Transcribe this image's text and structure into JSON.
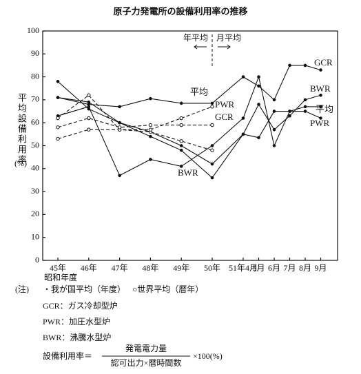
{
  "chart_data": {
    "type": "line",
    "title": "原子力発電所の設備利用率の推移",
    "y_label": "平均設備利用率",
    "y_unit": "(%)",
    "x_label": "昭和年度",
    "categories": [
      "45年",
      "46年",
      "47年",
      "48年",
      "49年",
      "50年",
      "51年4月",
      "5月",
      "6月",
      "7月",
      "8月",
      "9月"
    ],
    "ylim": [
      0,
      100
    ],
    "yticks": [
      0,
      10,
      20,
      30,
      40,
      50,
      60,
      70,
      80,
      90,
      100
    ],
    "annotations": [
      "年平均",
      "月平均"
    ],
    "series": [
      {
        "name": "GCR",
        "color": "#111",
        "style": "solid",
        "marker": "dot",
        "values": [
          71,
          68,
          67,
          70.5,
          68.5,
          68.5,
          80,
          76,
          70,
          85,
          85,
          83
        ]
      },
      {
        "name": "BWR",
        "color": "#111",
        "style": "solid",
        "marker": "dot",
        "values": [
          78,
          66,
          60,
          54,
          48,
          36,
          55,
          68,
          57,
          63,
          70,
          72
        ]
      },
      {
        "name": "平均",
        "color": "#111",
        "style": "solid",
        "marker": "dot",
        "values": [
          71,
          69,
          60,
          56,
          50,
          42,
          55,
          53.5,
          65,
          65,
          67,
          67
        ]
      },
      {
        "name": "PWR",
        "color": "#111",
        "style": "solid",
        "marker": "dot",
        "values": [
          63,
          67,
          37,
          44,
          41,
          50,
          62,
          80,
          50,
          65,
          65,
          62
        ]
      },
      {
        "name": "平均",
        "color": "#111",
        "style": "dashed",
        "marker": "circle",
        "values": [
          62,
          72,
          57,
          56,
          52,
          48,
          null,
          null,
          null,
          null,
          null,
          null
        ]
      },
      {
        "name": "PWR",
        "color": "#111",
        "style": "dashed",
        "marker": "circle",
        "values": [
          53,
          57,
          57,
          57,
          62,
          67,
          null,
          null,
          null,
          null,
          null,
          null
        ]
      },
      {
        "name": "GCR",
        "color": "#111",
        "style": "dashed",
        "marker": "circle",
        "values": [
          58,
          62,
          58,
          59,
          59,
          59,
          null,
          null,
          null,
          null,
          null,
          null
        ]
      }
    ]
  },
  "notes": {
    "head": "(注)",
    "items": [
      "・我が国平均（年度）",
      "○世界平均（暦年）"
    ],
    "definitions": [
      "GCR：ガス冷却型炉",
      "PWR：加圧水型炉",
      "BWR：沸騰水型炉"
    ],
    "formula": {
      "lhs": "設備利用率＝",
      "numerator": "発電電力量",
      "denominator": "認可出力×暦時間数",
      "factor": "×100(%)"
    }
  }
}
